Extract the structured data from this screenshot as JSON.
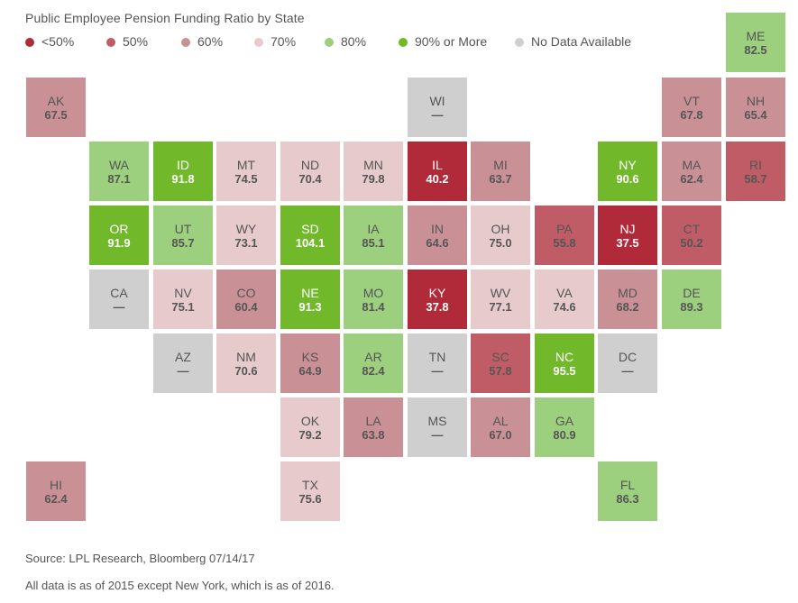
{
  "colors": {
    "lt50": "#b02a3a",
    "p50": "#bf5c66",
    "p60": "#c99196",
    "p70": "#e7cbcc",
    "p80": "#9dd07e",
    "p90": "#71b82a",
    "na": "#cfcfcf"
  },
  "chart_data": {
    "type": "tile-map",
    "title": "Public Employee Pension Funding Ratio by State",
    "legend": [
      {
        "label": "<50%",
        "color_key": "lt50"
      },
      {
        "label": "50%",
        "color_key": "p50"
      },
      {
        "label": "60%",
        "color_key": "p60"
      },
      {
        "label": "70%",
        "color_key": "p70"
      },
      {
        "label": "80%",
        "color_key": "p80"
      },
      {
        "label": "90% or More",
        "color_key": "p90"
      },
      {
        "label": "No Data Available",
        "color_key": "na"
      }
    ],
    "states": [
      {
        "abbr": "ME",
        "value": 82.5,
        "label": "82.5"
      },
      {
        "abbr": "AK",
        "value": 67.5,
        "label": "67.5"
      },
      {
        "abbr": "WI",
        "value": null,
        "label": "—"
      },
      {
        "abbr": "VT",
        "value": 67.8,
        "label": "67.8"
      },
      {
        "abbr": "NH",
        "value": 65.4,
        "label": "65.4"
      },
      {
        "abbr": "WA",
        "value": 87.1,
        "label": "87.1"
      },
      {
        "abbr": "ID",
        "value": 91.8,
        "label": "91.8"
      },
      {
        "abbr": "MT",
        "value": 74.5,
        "label": "74.5"
      },
      {
        "abbr": "ND",
        "value": 70.4,
        "label": "70.4"
      },
      {
        "abbr": "MN",
        "value": 79.8,
        "label": "79.8"
      },
      {
        "abbr": "IL",
        "value": 40.2,
        "label": "40.2"
      },
      {
        "abbr": "MI",
        "value": 63.7,
        "label": "63.7"
      },
      {
        "abbr": "NY",
        "value": 90.6,
        "label": "90.6"
      },
      {
        "abbr": "MA",
        "value": 62.4,
        "label": "62.4"
      },
      {
        "abbr": "RI",
        "value": 58.7,
        "label": "58.7"
      },
      {
        "abbr": "OR",
        "value": 91.9,
        "label": "91.9"
      },
      {
        "abbr": "UT",
        "value": 85.7,
        "label": "85.7"
      },
      {
        "abbr": "WY",
        "value": 73.1,
        "label": "73.1"
      },
      {
        "abbr": "SD",
        "value": 104.1,
        "label": "104.1"
      },
      {
        "abbr": "IA",
        "value": 85.1,
        "label": "85.1"
      },
      {
        "abbr": "IN",
        "value": 64.6,
        "label": "64.6"
      },
      {
        "abbr": "OH",
        "value": 75.0,
        "label": "75.0"
      },
      {
        "abbr": "PA",
        "value": 55.8,
        "label": "55.8"
      },
      {
        "abbr": "NJ",
        "value": 37.5,
        "label": "37.5"
      },
      {
        "abbr": "CT",
        "value": 50.2,
        "label": "50.2"
      },
      {
        "abbr": "CA",
        "value": null,
        "label": "—"
      },
      {
        "abbr": "NV",
        "value": 75.1,
        "label": "75.1"
      },
      {
        "abbr": "CO",
        "value": 60.4,
        "label": "60.4"
      },
      {
        "abbr": "NE",
        "value": 91.3,
        "label": "91.3"
      },
      {
        "abbr": "MO",
        "value": 81.4,
        "label": "81.4"
      },
      {
        "abbr": "KY",
        "value": 37.8,
        "label": "37.8"
      },
      {
        "abbr": "WV",
        "value": 77.1,
        "label": "77.1"
      },
      {
        "abbr": "VA",
        "value": 74.6,
        "label": "74.6"
      },
      {
        "abbr": "MD",
        "value": 68.2,
        "label": "68.2"
      },
      {
        "abbr": "DE",
        "value": 89.3,
        "label": "89.3"
      },
      {
        "abbr": "AZ",
        "value": null,
        "label": "—"
      },
      {
        "abbr": "NM",
        "value": 70.6,
        "label": "70.6"
      },
      {
        "abbr": "KS",
        "value": 64.9,
        "label": "64.9"
      },
      {
        "abbr": "AR",
        "value": 82.4,
        "label": "82.4"
      },
      {
        "abbr": "TN",
        "value": null,
        "label": "—"
      },
      {
        "abbr": "SC",
        "value": 57.8,
        "label": "57.8"
      },
      {
        "abbr": "NC",
        "value": 95.5,
        "label": "95.5"
      },
      {
        "abbr": "DC",
        "value": null,
        "label": "—"
      },
      {
        "abbr": "OK",
        "value": 79.2,
        "label": "79.2"
      },
      {
        "abbr": "LA",
        "value": 63.8,
        "label": "63.8"
      },
      {
        "abbr": "MS",
        "value": null,
        "label": "—"
      },
      {
        "abbr": "AL",
        "value": 67.0,
        "label": "67.0"
      },
      {
        "abbr": "GA",
        "value": 80.9,
        "label": "80.9"
      },
      {
        "abbr": "HI",
        "value": 62.4,
        "label": "62.4"
      },
      {
        "abbr": "TX",
        "value": 75.6,
        "label": "75.6"
      },
      {
        "abbr": "FL",
        "value": 86.3,
        "label": "86.3"
      }
    ]
  },
  "footer": {
    "source": "Source: LPL Research, Bloomberg  07/14/17",
    "note": "All data is as of 2015 except New York, which is as of 2016."
  }
}
